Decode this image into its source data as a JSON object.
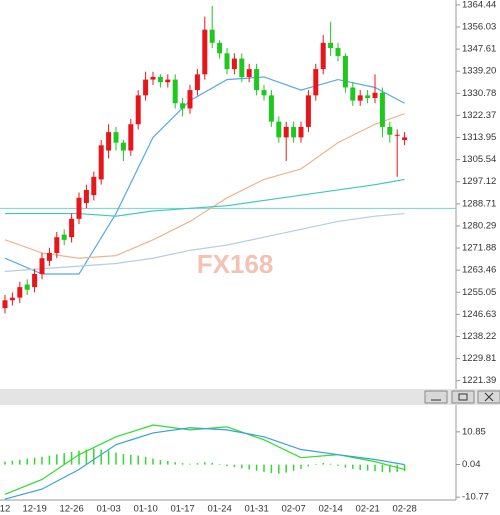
{
  "chart_data": [
    {
      "type": "candlestick",
      "watermark": "FX168",
      "categories": [
        "12",
        null,
        null,
        null,
        "12-19",
        null,
        null,
        null,
        null,
        "12-26",
        null,
        null,
        null,
        null,
        "01-03",
        null,
        null,
        null,
        null,
        "01-10",
        null,
        null,
        null,
        null,
        "01-17",
        null,
        null,
        null,
        null,
        "01-24",
        null,
        null,
        null,
        null,
        "01-31",
        null,
        null,
        null,
        null,
        "02-07",
        null,
        null,
        null,
        null,
        "02-14",
        null,
        null,
        null,
        null,
        "02-21",
        null,
        null,
        null,
        null,
        "02-28"
      ],
      "open": [
        1249,
        1252,
        1253,
        1258,
        1257,
        1262,
        1267,
        1270,
        1277,
        1276,
        1283,
        1289,
        1292,
        1298,
        1309,
        1316,
        1312,
        1309,
        1319,
        1330,
        1336,
        1337,
        1335,
        1336,
        1327,
        1325,
        1332,
        1338,
        1355,
        1350,
        1346,
        1340,
        1344,
        1337,
        1340,
        1332,
        1330,
        1320,
        1314,
        1318,
        1314,
        1318,
        1330,
        1340,
        1350,
        1348,
        1345,
        1333,
        1328,
        1330,
        1329,
        1331,
        1318,
        1315,
        1313
      ],
      "high": [
        1254,
        1255,
        1259,
        1260,
        1264,
        1270,
        1272,
        1278,
        1279,
        1285,
        1293,
        1296,
        1301,
        1313,
        1319,
        1318,
        1313,
        1321,
        1332,
        1339,
        1339,
        1338,
        1338,
        1338,
        1329,
        1334,
        1340,
        1360,
        1364,
        1351,
        1348,
        1346,
        1346,
        1342,
        1342,
        1334,
        1332,
        1322,
        1320,
        1320,
        1320,
        1332,
        1342,
        1353,
        1358,
        1350,
        1346,
        1335,
        1332,
        1332,
        1338,
        1333,
        1320,
        1317,
        1316
      ],
      "low": [
        1247,
        1250,
        1251,
        1254,
        1255,
        1260,
        1265,
        1268,
        1273,
        1274,
        1281,
        1287,
        1290,
        1296,
        1306,
        1309,
        1305,
        1307,
        1317,
        1328,
        1334,
        1333,
        1333,
        1325,
        1322,
        1323,
        1330,
        1336,
        1348,
        1344,
        1338,
        1338,
        1335,
        1335,
        1330,
        1328,
        1318,
        1312,
        1305,
        1312,
        1312,
        1316,
        1328,
        1338,
        1345,
        1343,
        1331,
        1326,
        1326,
        1327,
        1327,
        1314,
        1312,
        1299,
        1311
      ],
      "close": [
        1252,
        1253,
        1257,
        1256,
        1262,
        1268,
        1270,
        1276,
        1275,
        1283,
        1291,
        1294,
        1299,
        1311,
        1316,
        1312,
        1309,
        1319,
        1330,
        1336,
        1337,
        1335,
        1336,
        1327,
        1325,
        1332,
        1338,
        1355,
        1350,
        1346,
        1340,
        1344,
        1337,
        1340,
        1332,
        1330,
        1320,
        1314,
        1318,
        1314,
        1318,
        1330,
        1340,
        1350,
        1348,
        1345,
        1333,
        1328,
        1330,
        1329,
        1331,
        1318,
        1315,
        1315,
        1314
      ],
      "up_color": "#e8161b",
      "down_color": "#1fc81f",
      "series": [
        {
          "color": "#5aa8e6",
          "x": [
            0,
            5,
            10,
            15,
            20,
            25,
            30,
            35,
            40,
            45,
            50,
            54
          ],
          "values": [
            1268,
            1262,
            1262,
            1285,
            1314,
            1328,
            1336,
            1337,
            1332,
            1336,
            1333,
            1327
          ]
        },
        {
          "color": "#f0b48c",
          "x": [
            0,
            5,
            10,
            15,
            20,
            25,
            30,
            35,
            40,
            45,
            50,
            54
          ],
          "values": [
            1275,
            1270,
            1268,
            1269,
            1275,
            1282,
            1291,
            1298,
            1302,
            1312,
            1319,
            1323
          ]
        },
        {
          "color": "#3cc8c0",
          "x": [
            0,
            5,
            10,
            15,
            20,
            25,
            30,
            35,
            40,
            45,
            50,
            54
          ],
          "values": [
            1285,
            1285,
            1285,
            1284,
            1286,
            1287,
            1288,
            1290,
            1292,
            1294,
            1296,
            1298
          ]
        },
        {
          "color": "#b4cde0",
          "x": [
            0,
            5,
            10,
            15,
            20,
            25,
            30,
            35,
            40,
            45,
            50,
            54
          ],
          "values": [
            1263,
            1264,
            1265,
            1266,
            1268,
            1271,
            1273,
            1276,
            1279,
            1282,
            1284,
            1285
          ]
        }
      ],
      "price_line": 1287,
      "price_line_color": "#6fd6d0",
      "ylim": [
        1218.6,
        1366.3
      ],
      "yticks": [
        1364.44,
        1356.03,
        1347.61,
        {
          "value": 1339.2,
          "label": "1339.20"
        },
        1330.78,
        1322.37,
        1313.95,
        1305.54,
        1297.12,
        1288.71,
        1280.29,
        1271.88,
        1263.46,
        1255.05,
        1246.63,
        1238.22,
        1229.81,
        1221.39
      ]
    },
    {
      "type": "combo",
      "ylim": [
        -11.7,
        19.4
      ],
      "yticks": [
        10.85,
        0.04,
        -10.77
      ],
      "histogram": {
        "color": "#33d633",
        "values": [
          1.0,
          1.3,
          1.6,
          2.0,
          2.3,
          2.6,
          3.0,
          3.4,
          3.8,
          4.2,
          4.6,
          5.0,
          5.3,
          5.0,
          4.6,
          4.0,
          3.5,
          3.2,
          3.0,
          2.6,
          2.0,
          1.5,
          1.2,
          0.8,
          0.5,
          0.3,
          0.5,
          0.8,
          0.6,
          0.2,
          -0.5,
          -0.8,
          -1.2,
          -1.6,
          -2.0,
          -2.4,
          -2.8,
          -3.0,
          -2.6,
          -2.0,
          -1.4,
          -0.6,
          0.2,
          0.6,
          0.3,
          -0.4,
          -1.0,
          -1.4,
          -1.8,
          -2.0,
          -2.2,
          -2.4,
          -2.6,
          -2.4,
          -2.2
        ]
      },
      "series": [
        {
          "color": "#2fdc2f",
          "x": [
            0,
            5,
            10,
            15,
            20,
            25,
            30,
            35,
            40,
            45,
            50,
            54
          ],
          "values": [
            -9.8,
            -4.9,
            3.3,
            9.2,
            13.1,
            11.5,
            12.5,
            8.2,
            2.3,
            3.3,
            1.0,
            -1.6
          ]
        },
        {
          "color": "#3a9fe0",
          "x": [
            0,
            5,
            10,
            15,
            20,
            25,
            30,
            35,
            40,
            45,
            50,
            54
          ],
          "values": [
            -11.4,
            -8.1,
            -1.6,
            6.6,
            10.5,
            12.2,
            11.5,
            9.2,
            5.0,
            3.3,
            1.7,
            0.0
          ]
        }
      ]
    }
  ]
}
